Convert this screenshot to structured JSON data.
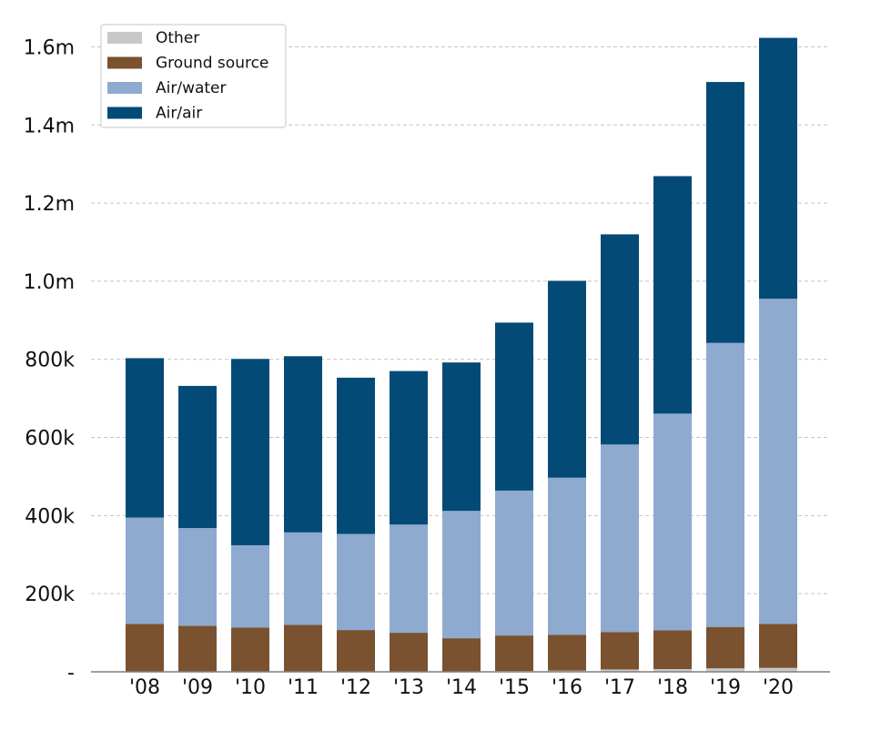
{
  "chart_data": {
    "type": "bar",
    "stacked": true,
    "title": "",
    "xlabel": "",
    "ylabel": "",
    "categories": [
      "'08",
      "'09",
      "'10",
      "'11",
      "'12",
      "'13",
      "'14",
      "'15",
      "'16",
      "'17",
      "'18",
      "'19",
      "'20"
    ],
    "series": [
      {
        "name": "Other",
        "color": "#c8c8c8",
        "values": [
          0,
          0,
          0,
          0,
          0,
          0,
          0,
          2000,
          3000,
          6000,
          7000,
          9000,
          10000
        ]
      },
      {
        "name": "Ground source",
        "color": "#7a5230",
        "values": [
          123000,
          118000,
          113000,
          120000,
          107000,
          100000,
          86000,
          91000,
          92000,
          96000,
          99000,
          106000,
          113000
        ]
      },
      {
        "name": "Air/water",
        "color": "#8eaacf",
        "values": [
          272000,
          250000,
          211000,
          237000,
          246000,
          277000,
          326000,
          371000,
          402000,
          480000,
          555000,
          727000,
          832000
        ]
      },
      {
        "name": "Air/air",
        "color": "#034a77",
        "values": [
          408000,
          364000,
          477000,
          451000,
          400000,
          393000,
          380000,
          430000,
          504000,
          538000,
          608000,
          668000,
          668000
        ]
      }
    ],
    "ylim": [
      0,
      1650000
    ],
    "yticks": [
      0,
      200000,
      400000,
      600000,
      800000,
      1000000,
      1200000,
      1400000,
      1600000
    ],
    "ytick_labels": [
      "-",
      "200k",
      "400k",
      "600k",
      "800k",
      "1.0m",
      "1.2m",
      "1.4m",
      "1.6m"
    ],
    "grid": true,
    "legend": {
      "placement": "top-left",
      "order": [
        "Other",
        "Ground source",
        "Air/water",
        "Air/air"
      ]
    }
  }
}
